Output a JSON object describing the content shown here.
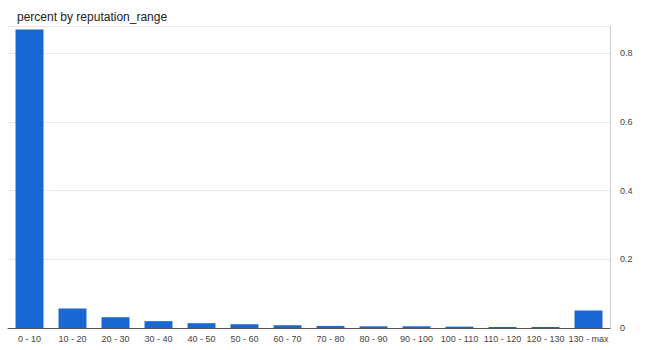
{
  "chart_data": {
    "type": "bar",
    "title": "percent by reputation_range",
    "categories": [
      "0 - 10",
      "10 - 20",
      "20 - 30",
      "30 - 40",
      "40 - 50",
      "50 - 60",
      "60 - 70",
      "70 - 80",
      "80 - 90",
      "90 - 100",
      "100 - 110",
      "110 - 120",
      "120 - 130",
      "130 - max"
    ],
    "values": [
      0.87,
      0.057,
      0.031,
      0.02,
      0.014,
      0.011,
      0.008,
      0.006,
      0.005,
      0.005,
      0.004,
      0.003,
      0.003,
      0.051
    ],
    "color": "#1967d2",
    "ylim": [
      0,
      0.88
    ],
    "yticks": [
      0,
      0.2,
      0.4,
      0.6,
      0.8
    ],
    "grid": true
  }
}
